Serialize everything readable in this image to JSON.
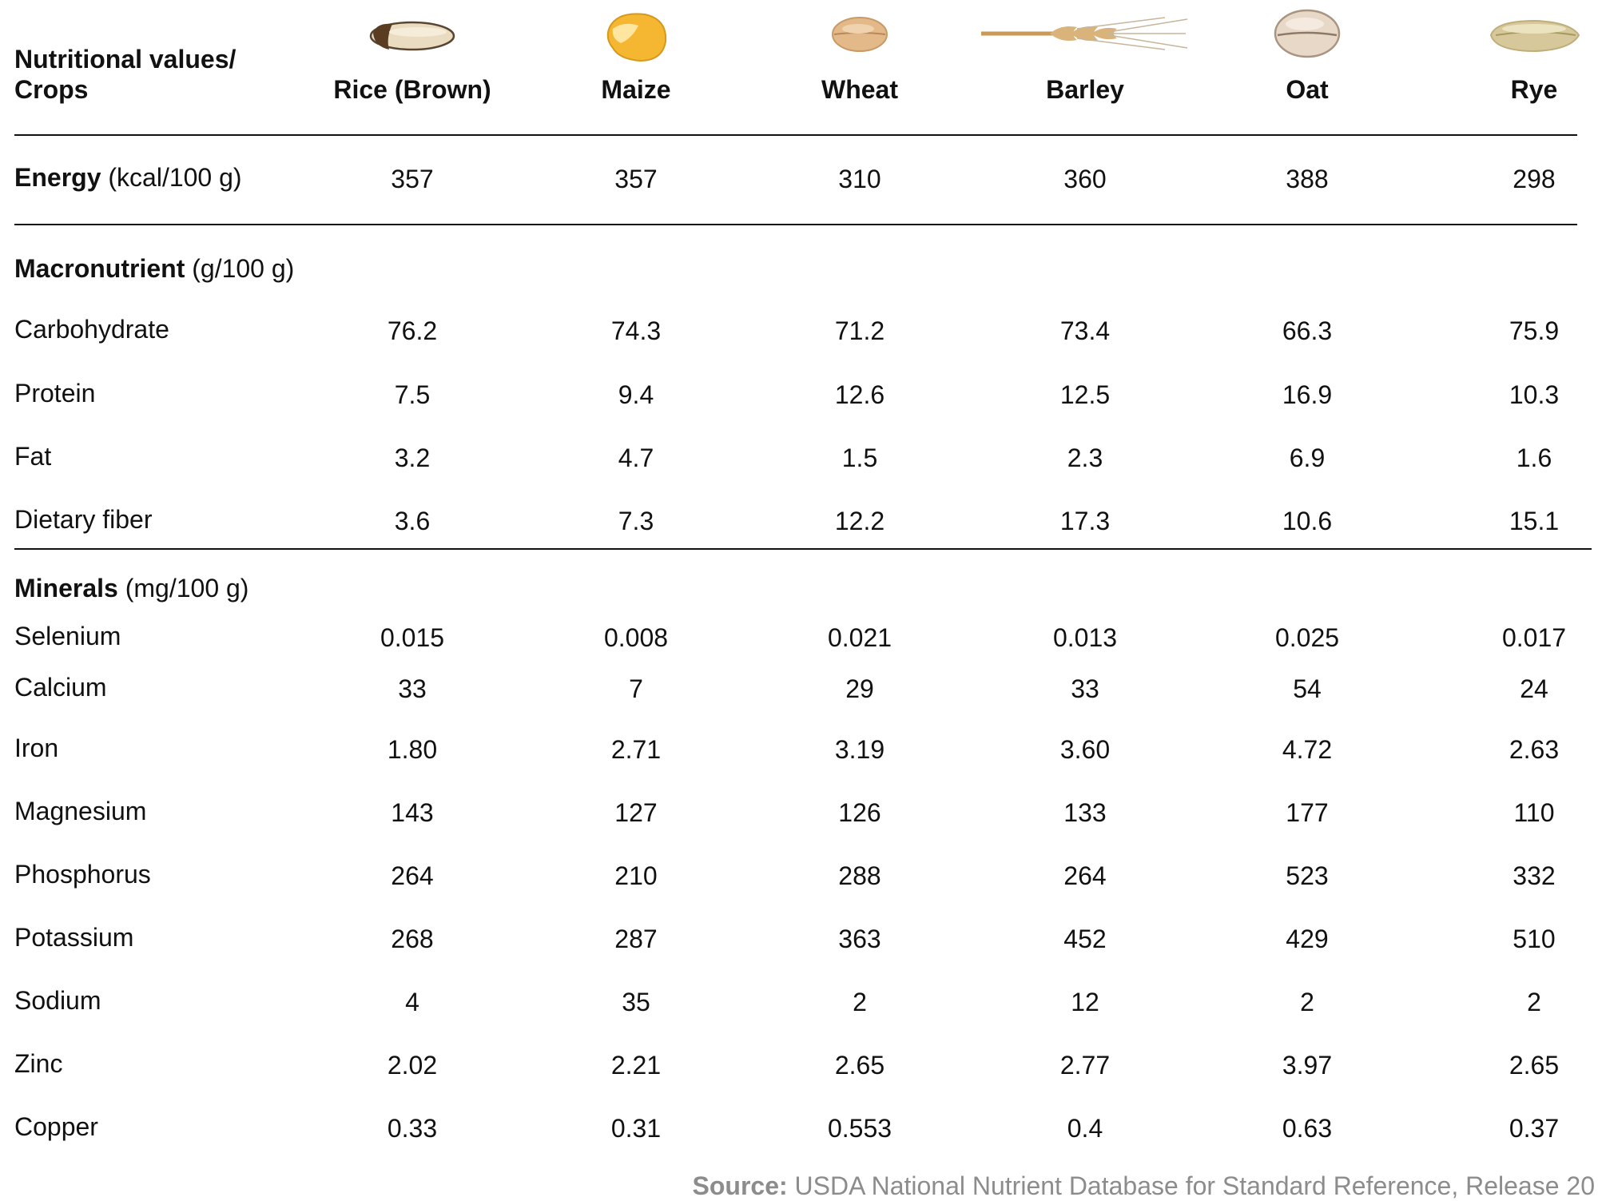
{
  "header": {
    "label_line1": "Nutritional values/",
    "label_line2": "Crops",
    "crops": [
      {
        "name": "Rice (Brown)",
        "icon": "rice-grain-icon"
      },
      {
        "name": "Maize",
        "icon": "maize-kernel-icon"
      },
      {
        "name": "Wheat",
        "icon": "wheat-grain-icon"
      },
      {
        "name": "Barley",
        "icon": "barley-ear-icon"
      },
      {
        "name": "Oat",
        "icon": "oat-grain-icon"
      },
      {
        "name": "Rye",
        "icon": "rye-grain-icon"
      }
    ]
  },
  "energy": {
    "label": "Energy",
    "unit": "(kcal/100 g)",
    "values": [
      "357",
      "357",
      "310",
      "360",
      "388",
      "298"
    ]
  },
  "macronutrient": {
    "label": "Macronutrient",
    "unit": "(g/100 g)",
    "rows": [
      {
        "name": "Carbohydrate",
        "values": [
          "76.2",
          "74.3",
          "71.2",
          "73.4",
          "66.3",
          "75.9"
        ]
      },
      {
        "name": "Protein",
        "values": [
          "7.5",
          "9.4",
          "12.6",
          "12.5",
          "16.9",
          "10.3"
        ]
      },
      {
        "name": "Fat",
        "values": [
          "3.2",
          "4.7",
          "1.5",
          "2.3",
          "6.9",
          "1.6"
        ]
      },
      {
        "name": "Dietary fiber",
        "values": [
          "3.6",
          "7.3",
          "12.2",
          "17.3",
          "10.6",
          "15.1"
        ]
      }
    ]
  },
  "minerals": {
    "label": "Minerals",
    "unit": "(mg/100 g)",
    "rows": [
      {
        "name": "Selenium",
        "values": [
          "0.015",
          "0.008",
          "0.021",
          "0.013",
          "0.025",
          "0.017"
        ]
      },
      {
        "name": "Calcium",
        "values": [
          "33",
          "7",
          "29",
          "33",
          "54",
          "24"
        ]
      },
      {
        "name": "Iron",
        "values": [
          "1.80",
          "2.71",
          "3.19",
          "3.60",
          "4.72",
          "2.63"
        ]
      },
      {
        "name": "Magnesium",
        "values": [
          "143",
          "127",
          "126",
          "133",
          "177",
          "110"
        ]
      },
      {
        "name": "Phosphorus",
        "values": [
          "264",
          "210",
          "288",
          "264",
          "523",
          "332"
        ]
      },
      {
        "name": "Potassium",
        "values": [
          "268",
          "287",
          "363",
          "452",
          "429",
          "510"
        ]
      },
      {
        "name": "Sodium",
        "values": [
          "4",
          "35",
          "2",
          "12",
          "2",
          "2"
        ]
      },
      {
        "name": "Zinc",
        "values": [
          "2.02",
          "2.21",
          "2.65",
          "2.77",
          "3.97",
          "2.65"
        ]
      },
      {
        "name": "Copper",
        "values": [
          "0.33",
          "0.31",
          "0.553",
          "0.4",
          "0.63",
          "0.37"
        ]
      }
    ]
  },
  "source": {
    "label": "Source:",
    "text": "USDA National Nutrient Database for Standard Reference, Release 20"
  }
}
